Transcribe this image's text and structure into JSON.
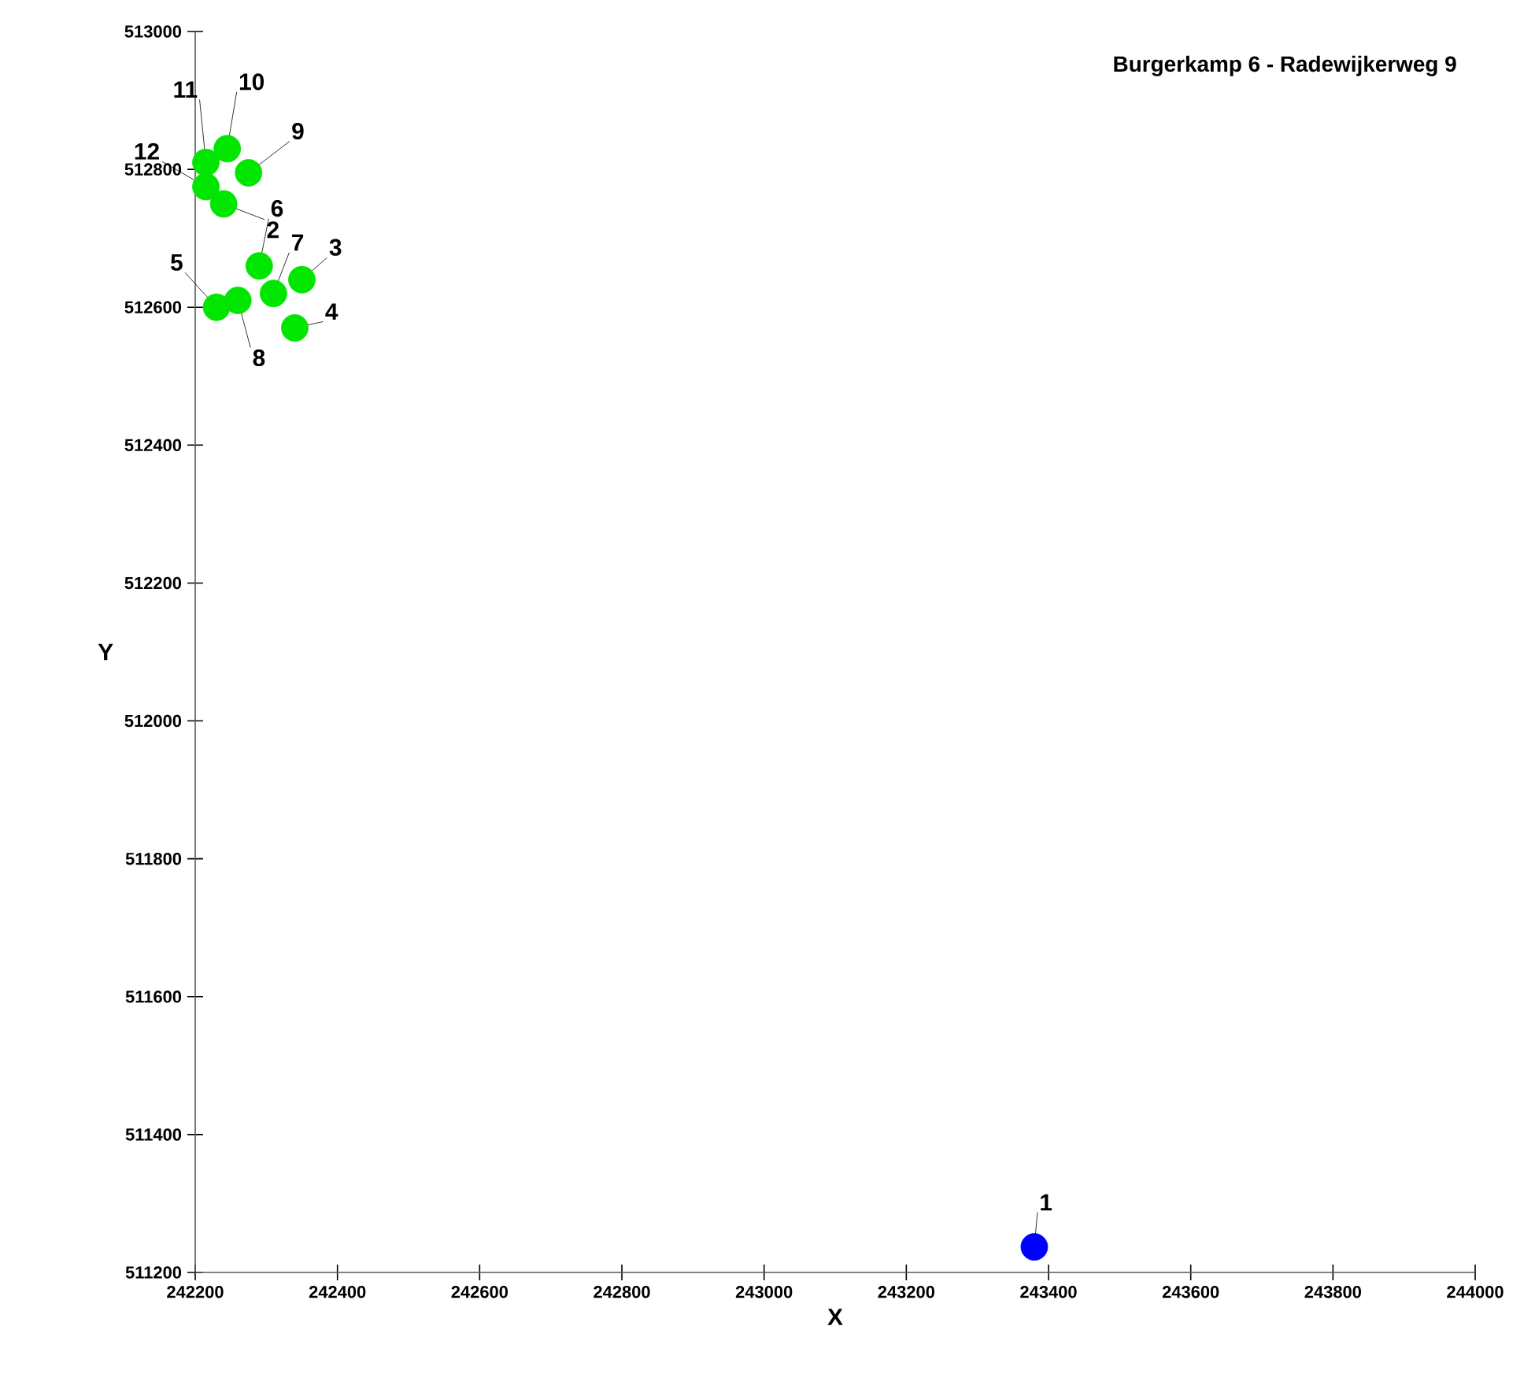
{
  "chart_data": {
    "type": "scatter",
    "title": "Burgerkamp 6 - Radewijkerweg 9",
    "xlabel": "X",
    "ylabel": "Y",
    "xlim": [
      242200,
      244000
    ],
    "xticks": [
      242200,
      242400,
      242600,
      242800,
      243000,
      243200,
      243400,
      243600,
      243800,
      244000
    ],
    "ylim": [
      511200,
      513000
    ],
    "yticks": [
      511200,
      511400,
      511600,
      511800,
      512000,
      512200,
      512400,
      512600,
      512800,
      513000
    ],
    "grid": false,
    "marker": "circle",
    "series": [
      {
        "color": "#0000ff",
        "x": [
          243380
        ],
        "values": [
          511237
        ]
      },
      {
        "color": "#00e600",
        "x": [
          242240,
          242350,
          242340,
          242230,
          242290,
          242310,
          242260,
          242275,
          242245,
          242215,
          242215
        ],
        "values": [
          512750,
          512640,
          512570,
          512600,
          512660,
          512620,
          512610,
          512795,
          512830,
          512810,
          512775
        ]
      }
    ],
    "annotations": [
      {
        "text": "1",
        "x": 243380,
        "y": 511237
      },
      {
        "text": "2",
        "x": 242240,
        "y": 512750
      },
      {
        "text": "3",
        "x": 242350,
        "y": 512640
      },
      {
        "text": "4",
        "x": 242340,
        "y": 512570
      },
      {
        "text": "5",
        "x": 242230,
        "y": 512600
      },
      {
        "text": "6",
        "x": 242290,
        "y": 512660
      },
      {
        "text": "7",
        "x": 242310,
        "y": 512620
      },
      {
        "text": "8",
        "x": 242260,
        "y": 512610
      },
      {
        "text": "9",
        "x": 242275,
        "y": 512795
      },
      {
        "text": "10",
        "x": 242245,
        "y": 512830
      },
      {
        "text": "11",
        "x": 242215,
        "y": 512810
      },
      {
        "text": "12",
        "x": 242215,
        "y": 512775
      }
    ]
  }
}
